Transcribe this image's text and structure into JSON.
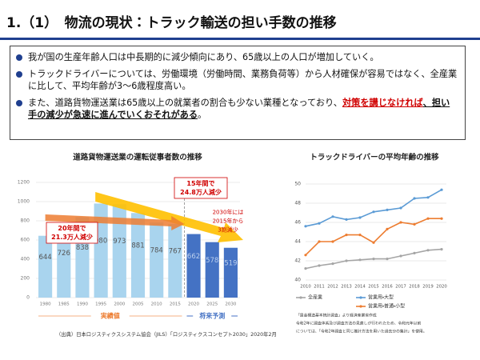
{
  "header": {
    "title": "1.（1）　物流の現状：トラック輸送の担い手数の推移"
  },
  "bullets": [
    {
      "parts": [
        "我が国の生産年齢人口は中長期的に減少傾向にあり、65歳以上の人口が増加していく。"
      ]
    },
    {
      "parts": [
        "トラックドライバーについては、労働環境（労働時間、業務負荷等）から人材確保が容易ではなく、全産業に比して、平均年齢が3～6歳程度高い。"
      ]
    },
    {
      "parts": [
        "また、道路貨物運送業は65歳以上の就業者の割合も少ない業種となっており、",
        "対策を講じなければ",
        "、担い手の減少が急速に進んでいくおそれがある",
        "。"
      ]
    }
  ],
  "chart_data": [
    {
      "type": "bar",
      "title": "道路貨物運送業の運転従事者数の推移",
      "categories": [
        "1980",
        "1985",
        "1990",
        "1995",
        "2000",
        "2005",
        "2010",
        "2015",
        "2020",
        "2025",
        "2030"
      ],
      "series": [
        {
          "name": "実績値",
          "color": "#a9d4ee",
          "values": [
            644,
            726,
            838,
            980,
            973,
            881,
            784,
            767,
            null,
            null,
            null
          ]
        },
        {
          "name": "将来予測",
          "color": "#4472c4",
          "values": [
            null,
            null,
            null,
            null,
            null,
            null,
            null,
            null,
            662,
            578,
            519
          ]
        }
      ],
      "ylim": [
        0,
        1200
      ],
      "yticks": [
        0,
        200,
        400,
        600,
        800,
        1000,
        1200
      ],
      "grid": true,
      "annotations": [
        [
          "20年間で",
          "21.3万人減少"
        ],
        [
          "15年間で",
          "24.8万人減少"
        ],
        [
          "2030年には",
          "2015年から",
          "3割減少"
        ]
      ],
      "source": "（出典）日本ロジスティクスシステム協会（JILS）「ロジスティクスコンセプト2030」2020年2月"
    },
    {
      "type": "line",
      "title": "トラックドライバーの平均年齢の推移",
      "categories": [
        "2010",
        "2011",
        "2012",
        "2013",
        "2014",
        "2015",
        "2016",
        "2017",
        "2018",
        "2019",
        "2020"
      ],
      "series": [
        {
          "name": "全産業",
          "color": "#a5a5a5",
          "values": [
            41.2,
            41.5,
            41.7,
            42.0,
            42.1,
            42.2,
            42.2,
            42.5,
            42.8,
            43.1,
            43.2
          ]
        },
        {
          "name": "営業用・大型",
          "color": "#5b9bd5",
          "values": [
            45.6,
            45.9,
            46.6,
            46.3,
            46.5,
            47.1,
            47.3,
            47.5,
            48.5,
            48.6,
            49.4
          ]
        },
        {
          "name": "営業用・普通・小型",
          "color": "#ed7d31",
          "values": [
            42.6,
            44.0,
            44.0,
            44.7,
            44.7,
            43.9,
            45.3,
            46.0,
            45.8,
            46.4,
            46.4
          ]
        }
      ],
      "ylim": [
        40,
        50
      ],
      "yticks": [
        40,
        42,
        44,
        46,
        48,
        50
      ],
      "grid": true,
      "note": [
        "「賃金構造基本統計調査」より経済産業省作成",
        "令和2年に調査体系及び調査方法の見直しが行われたため、令和元年以前",
        "については、「令和2年調査と同じ推計方法を用いた過去分の集計」を使用。"
      ]
    }
  ]
}
